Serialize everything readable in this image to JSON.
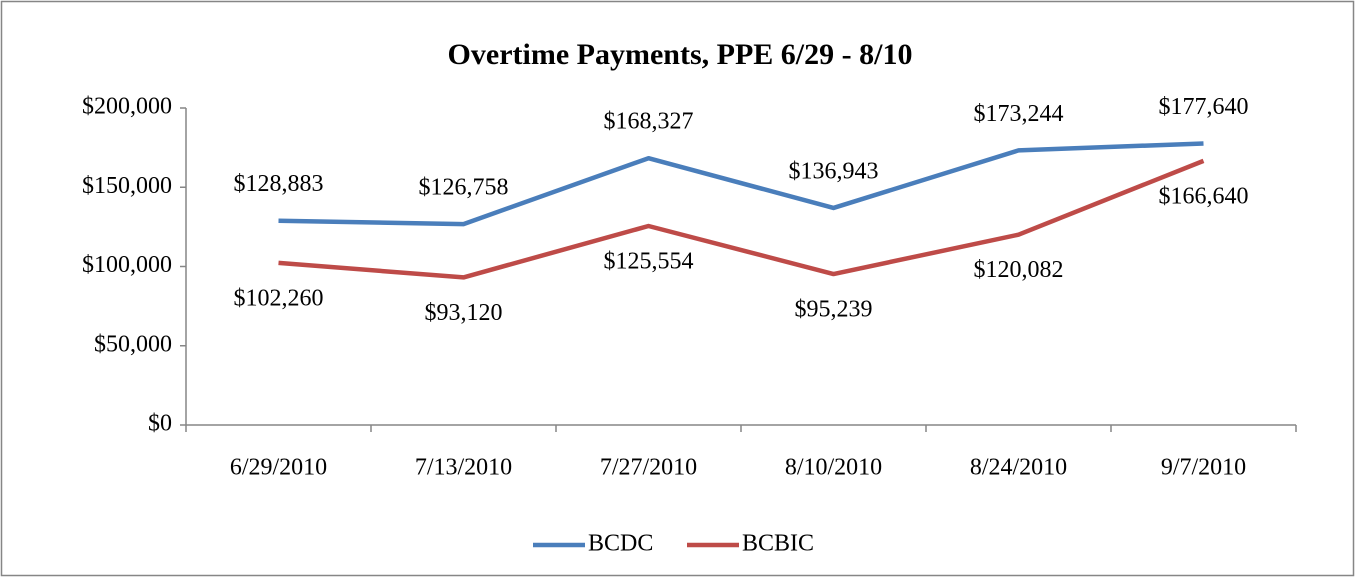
{
  "chart_data": {
    "type": "line",
    "title": "Overtime Payments, PPE 6/29 - 8/10",
    "categories": [
      "6/29/2010",
      "7/13/2010",
      "7/27/2010",
      "8/10/2010",
      "8/24/2010",
      "9/7/2010"
    ],
    "series": [
      {
        "name": "BCDC",
        "color": "#4a7ebb",
        "values": [
          128883,
          126758,
          168327,
          136943,
          173244,
          177640
        ],
        "value_labels": [
          "$128,883",
          "$126,758",
          "$168,327",
          "$136,943",
          "$173,244",
          "$177,640"
        ]
      },
      {
        "name": "BCBIC",
        "color": "#be4b48",
        "values": [
          102260,
          93120,
          125554,
          95239,
          120082,
          166640
        ],
        "value_labels": [
          "$102,260",
          "$93,120",
          "$125,554",
          "$95,239",
          "$120,082",
          "$166,640"
        ]
      }
    ],
    "ylim": [
      0,
      200000
    ],
    "yticks": [
      {
        "value": 0,
        "label": "$0"
      },
      {
        "value": 50000,
        "label": "$50,000"
      },
      {
        "value": 100000,
        "label": "$100,000"
      },
      {
        "value": 150000,
        "label": "$150,000"
      },
      {
        "value": 200000,
        "label": "$200,000"
      }
    ],
    "grid": false,
    "legend": "bottom"
  }
}
